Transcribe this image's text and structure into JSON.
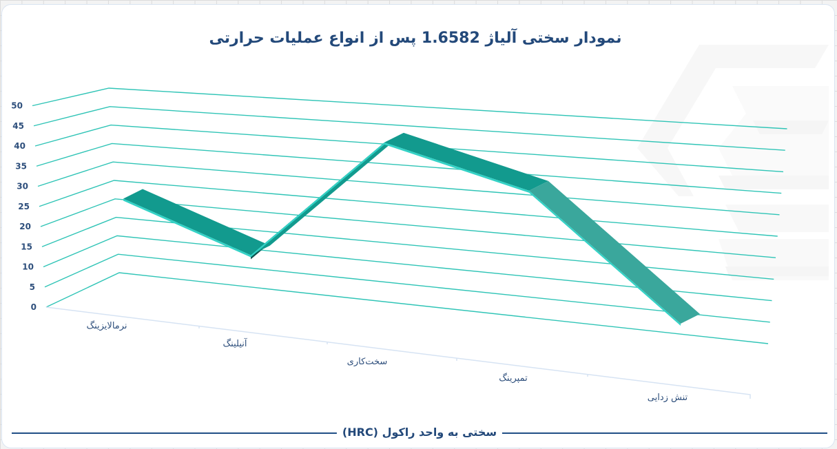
{
  "title": "نمودار سختی آلیاژ  1.6582 پس از انواع عملیات حرارتی",
  "footer_label": "سختی به واحد راکول (HRC)",
  "colors": {
    "gridline": "#2fc4b6",
    "ribbon_top": "#129a8e",
    "ribbon_light": "#3aa79c",
    "ribbon_edge": "#34d2c6",
    "ribbon_side": "#0c5550",
    "text": "#23497a",
    "floor": "#d6e3f3"
  },
  "watermark": "logo-watermark",
  "chart_data": {
    "type": "line",
    "style": "3d-ribbon",
    "title": "نمودار سختی آلیاژ 1.6582 پس از انواع عملیات حرارتی",
    "xlabel": "",
    "ylabel": "سختی به واحد راکول (HRC)",
    "categories": [
      "نرمالایزینگ",
      "آنیلینگ",
      "سخت‌کاری",
      "تمپرینگ",
      "تنش زدایی"
    ],
    "series": [
      {
        "name": "سختی (HRC)",
        "values": [
          25,
          15,
          45,
          37,
          10
        ]
      }
    ],
    "yticks": [
      "0",
      "5",
      "10",
      "15",
      "20",
      "25",
      "30",
      "35",
      "40",
      "45",
      "50"
    ],
    "ylim": [
      0,
      50
    ],
    "grid": true,
    "legend": "none"
  }
}
